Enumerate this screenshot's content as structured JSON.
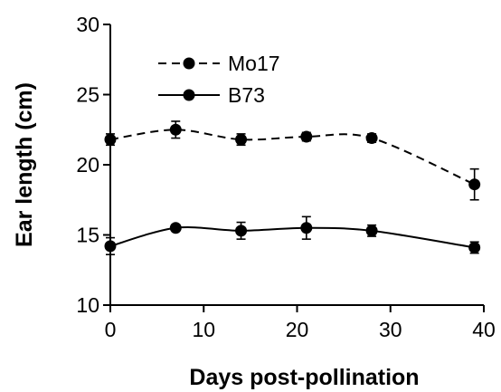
{
  "chart_data": {
    "type": "line",
    "xlabel": "Days post-pollination",
    "ylabel": "Ear length (cm)",
    "xlim": [
      0,
      40
    ],
    "ylim": [
      10,
      30
    ],
    "xticks": [
      0,
      10,
      20,
      30,
      40
    ],
    "yticks": [
      10,
      15,
      20,
      25,
      30
    ],
    "grid": false,
    "legend_position": "top-left",
    "series": [
      {
        "name": "Mo17",
        "style": "dashed",
        "color": "#000000",
        "x": [
          0,
          7,
          14,
          21,
          28,
          39
        ],
        "y": [
          21.8,
          22.5,
          21.8,
          22.0,
          21.9,
          18.6
        ],
        "error": [
          0.4,
          0.6,
          0.4,
          0.3,
          0.3,
          1.1
        ]
      },
      {
        "name": "B73",
        "style": "solid",
        "color": "#000000",
        "x": [
          0,
          7,
          14,
          21,
          28,
          39
        ],
        "y": [
          14.2,
          15.5,
          15.3,
          15.5,
          15.3,
          14.1
        ],
        "error": [
          0.6,
          0.2,
          0.6,
          0.8,
          0.4,
          0.4
        ]
      }
    ]
  }
}
